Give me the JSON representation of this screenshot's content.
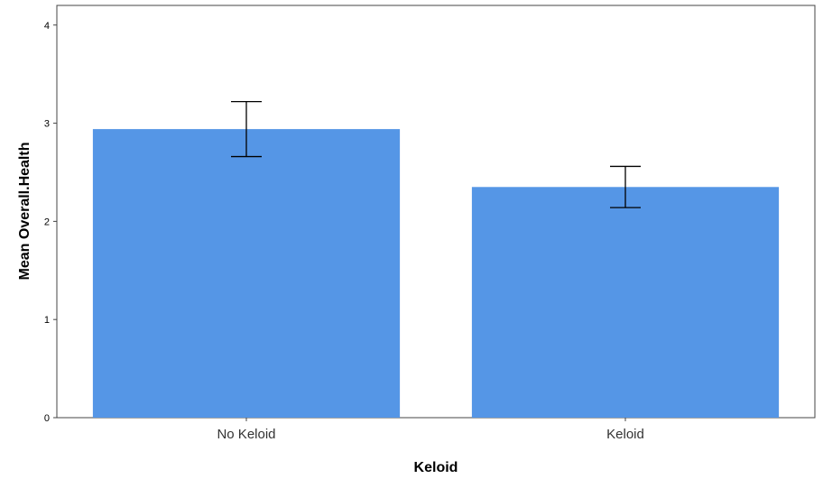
{
  "chart_data": {
    "type": "bar",
    "title": "",
    "xlabel": "Keloid",
    "ylabel": "Mean Overall.Health",
    "categories": [
      "No Keloid",
      "Keloid"
    ],
    "values": [
      2.94,
      2.35
    ],
    "error_low": [
      2.66,
      2.14
    ],
    "error_high": [
      3.22,
      2.56
    ],
    "ylim": [
      0,
      4.2
    ],
    "yticks": [
      "0",
      "1",
      "2",
      "3",
      "4"
    ],
    "grid": false,
    "bar_color": "#5596e6",
    "error_bar_color": "#000000"
  }
}
